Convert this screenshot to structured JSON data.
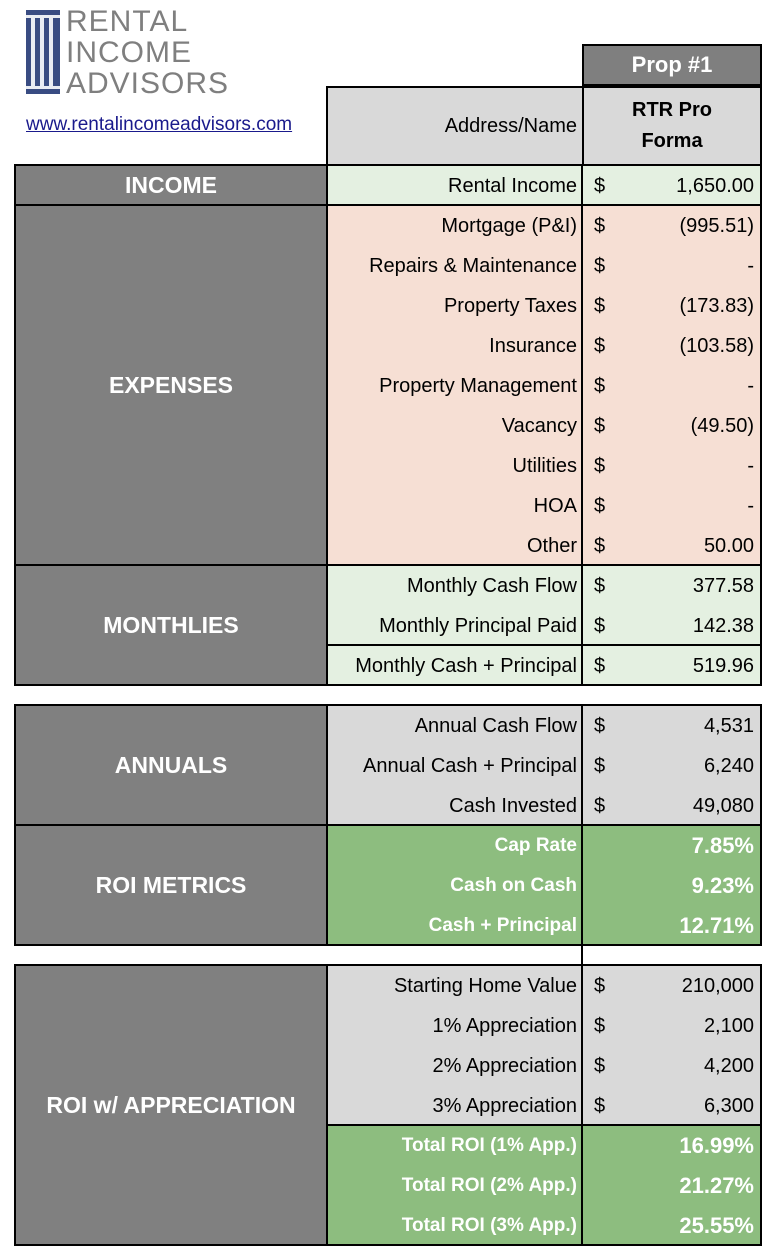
{
  "logo": {
    "line1": "RENTAL",
    "line2": "INCOME",
    "line3": "ADVISORS",
    "website": "www.rentalincomeadvisors.com"
  },
  "header": {
    "prop_label": "Prop #1",
    "address_label": "Address/Name",
    "address_value_line1": "RTR Pro",
    "address_value_line2": "Forma"
  },
  "currency_symbol": "$",
  "sections": {
    "income": "INCOME",
    "expenses": "EXPENSES",
    "monthlies": "MONTHLIES",
    "annuals": "ANNUALS",
    "roi_metrics": "ROI METRICS",
    "roi_appreciation": "ROI w/ APPRECIATION"
  },
  "income": [
    {
      "label": "Rental Income",
      "value": "1,650.00"
    }
  ],
  "expenses": [
    {
      "label": "Mortgage (P&I)",
      "value": "(995.51)"
    },
    {
      "label": "Repairs & Maintenance",
      "value": "-"
    },
    {
      "label": "Property Taxes",
      "value": "(173.83)"
    },
    {
      "label": "Insurance",
      "value": "(103.58)"
    },
    {
      "label": "Property Management",
      "value": "-"
    },
    {
      "label": "Vacancy",
      "value": "(49.50)"
    },
    {
      "label": "Utilities",
      "value": "-"
    },
    {
      "label": "HOA",
      "value": "-"
    },
    {
      "label": "Other",
      "value": "50.00"
    }
  ],
  "monthlies": [
    {
      "label": "Monthly Cash Flow",
      "value": "377.58"
    },
    {
      "label": "Monthly Principal Paid",
      "value": "142.38"
    },
    {
      "label": "Monthly Cash + Principal",
      "value": "519.96"
    }
  ],
  "annuals": [
    {
      "label": "Annual Cash Flow",
      "value": "4,531"
    },
    {
      "label": "Annual Cash + Principal",
      "value": "6,240"
    },
    {
      "label": "Cash Invested",
      "value": "49,080"
    }
  ],
  "roi_metrics": [
    {
      "label": "Cap Rate",
      "value": "7.85%"
    },
    {
      "label": "Cash on Cash",
      "value": "9.23%"
    },
    {
      "label": "Cash + Principal",
      "value": "12.71%"
    }
  ],
  "appreciation": [
    {
      "label": "Starting Home Value",
      "value": "210,000"
    },
    {
      "label": "1% Appreciation",
      "value": "2,100"
    },
    {
      "label": "2% Appreciation",
      "value": "4,200"
    },
    {
      "label": "3% Appreciation",
      "value": "6,300"
    }
  ],
  "appreciation_roi": [
    {
      "label": "Total ROI (1% App.)",
      "value": "16.99%"
    },
    {
      "label": "Total ROI (2% App.)",
      "value": "21.27%"
    },
    {
      "label": "Total ROI (3% App.)",
      "value": "25.55%"
    }
  ],
  "colors": {
    "section_grey": "#808080",
    "label_grey": "#d9d9d9",
    "income_mint": "#e4f0e1",
    "expense_peach": "#f6dfd4",
    "roi_green": "#8dbd7f",
    "website_blue": "#1a1a8c"
  }
}
